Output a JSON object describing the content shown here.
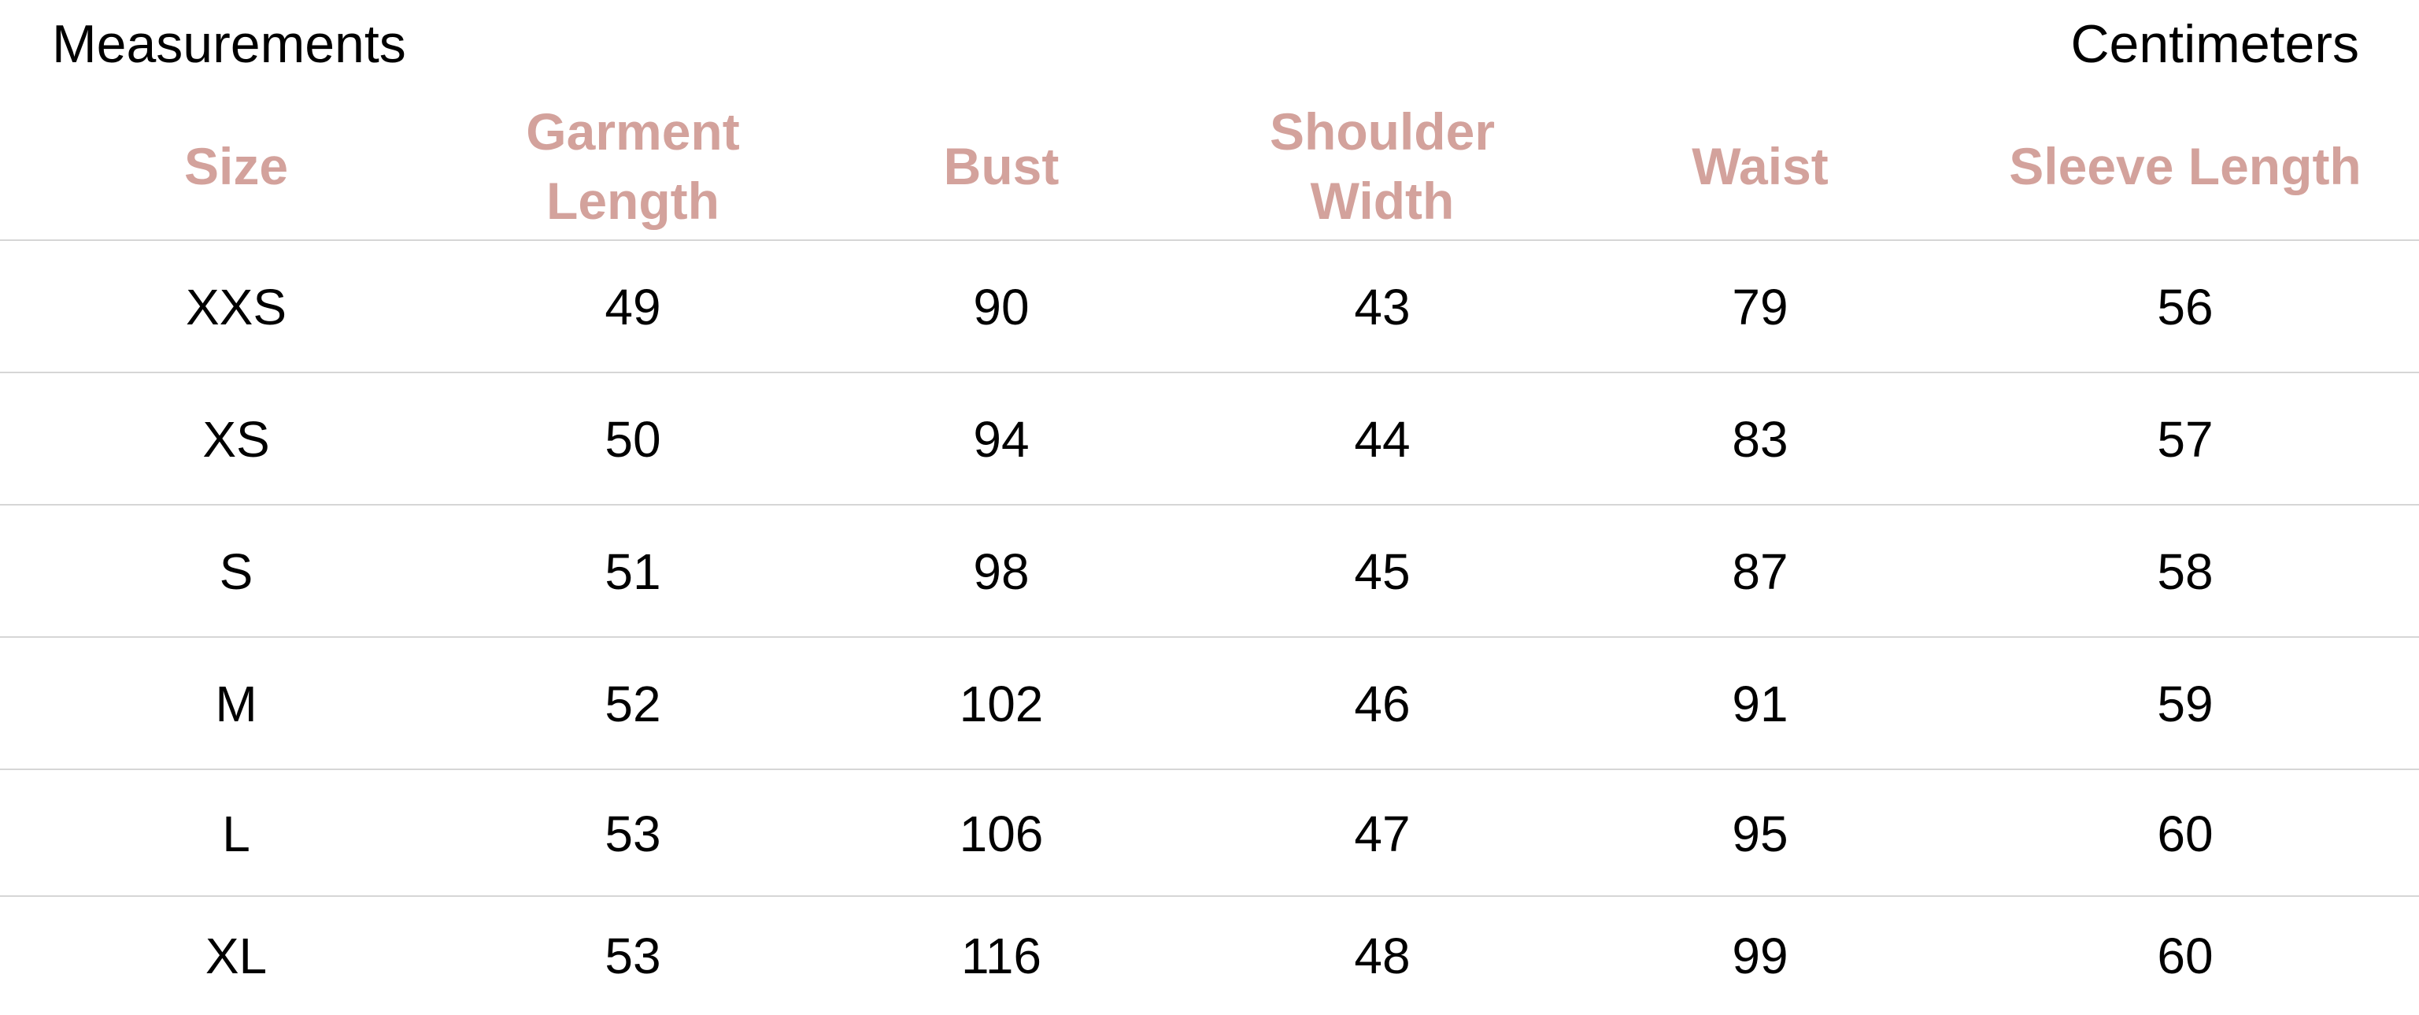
{
  "title": "Measurements",
  "unit": "Centimeters",
  "colors": {
    "header": "#d3a29c",
    "divider": "#d6d6d6",
    "text": "#000000"
  },
  "columns": [
    "Size",
    "Garment\nLength",
    "Bust",
    "Shoulder\nWidth",
    "Waist",
    "Sleeve Length"
  ],
  "rows": [
    [
      "XXS",
      "49",
      "90",
      "43",
      "79",
      "56"
    ],
    [
      "XS",
      "50",
      "94",
      "44",
      "83",
      "57"
    ],
    [
      "S",
      "51",
      "98",
      "45",
      "87",
      "58"
    ],
    [
      "M",
      "52",
      "102",
      "46",
      "91",
      "59"
    ],
    [
      "L",
      "53",
      "106",
      "47",
      "95",
      "60"
    ],
    [
      "XL",
      "53",
      "116",
      "48",
      "99",
      "60"
    ]
  ]
}
